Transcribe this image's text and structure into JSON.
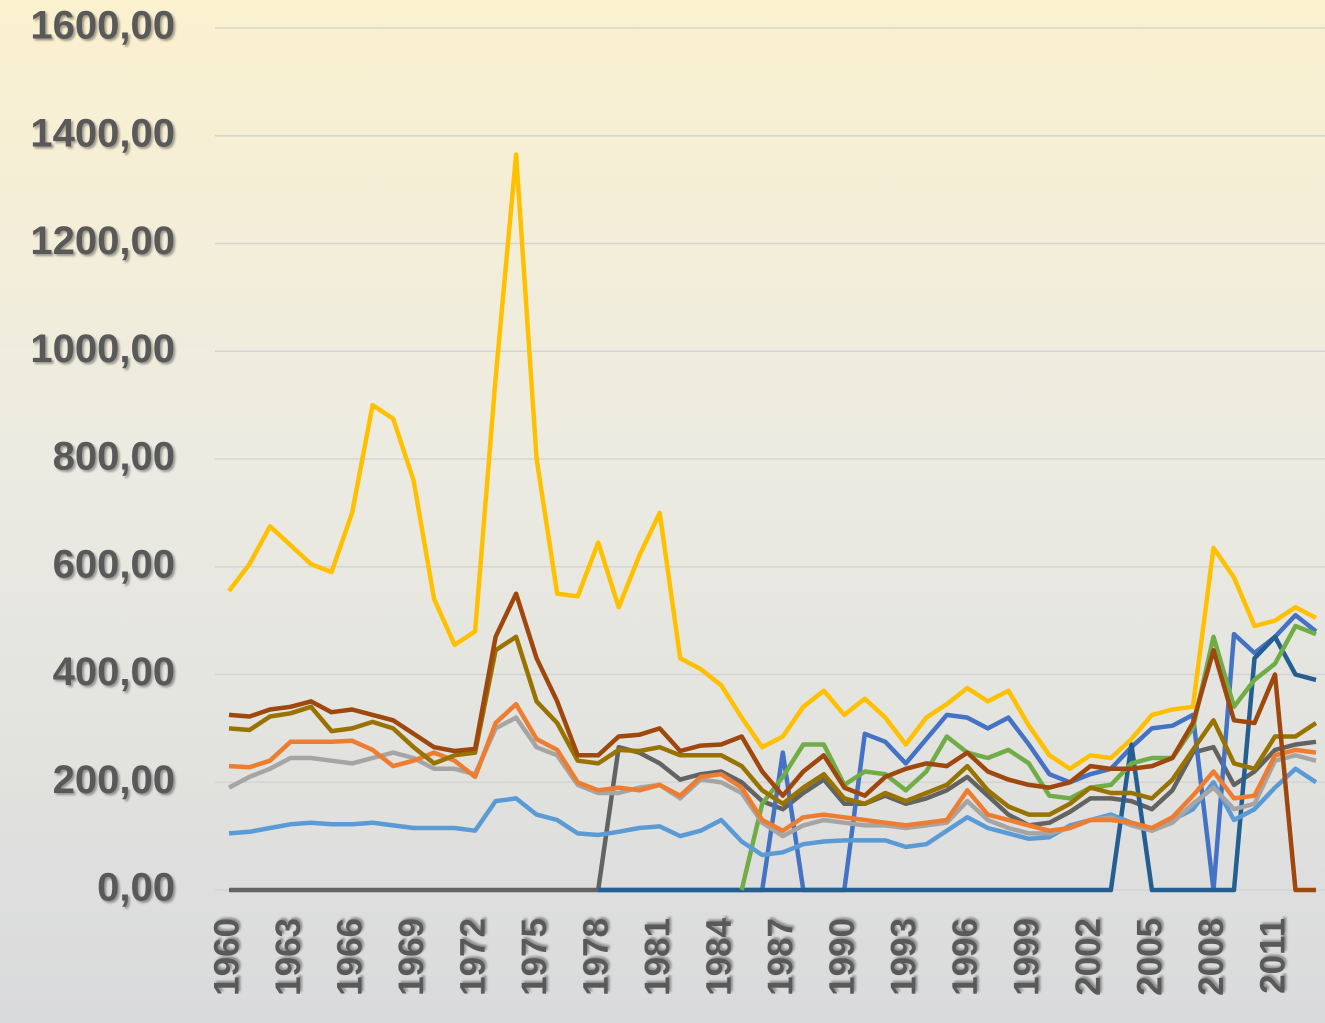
{
  "chart_data": {
    "type": "line",
    "categories": [
      "1960",
      null,
      null,
      "1963",
      null,
      null,
      "1966",
      null,
      null,
      "1969",
      null,
      null,
      "1972",
      null,
      null,
      "1975",
      null,
      null,
      "1978",
      null,
      null,
      "1981",
      null,
      null,
      "1984",
      null,
      null,
      "1987",
      null,
      null,
      "1990",
      null,
      null,
      "1993",
      null,
      null,
      "1996",
      null,
      null,
      "1999",
      null,
      null,
      "2002",
      null,
      null,
      "2005",
      null,
      null,
      "2008",
      null,
      null,
      "2011",
      null,
      null
    ],
    "ylim": [
      0,
      1600
    ],
    "yticks": [
      {
        "value": 0,
        "label": "0,00"
      },
      {
        "value": 200,
        "label": "200,00"
      },
      {
        "value": 400,
        "label": "400,00"
      },
      {
        "value": 600,
        "label": "600,00"
      },
      {
        "value": 800,
        "label": "800,00"
      },
      {
        "value": 1000,
        "label": "1000,00"
      },
      {
        "value": 1200,
        "label": "1200,00"
      },
      {
        "value": 1400,
        "label": "1400,00"
      },
      {
        "value": 1600,
        "label": "1600,00"
      }
    ],
    "grid": true,
    "series": [
      {
        "color": "#636363",
        "values": [
          0,
          0,
          0,
          0,
          0,
          0,
          0,
          0,
          0,
          0,
          0,
          0,
          0,
          0,
          0,
          0,
          0,
          0,
          0,
          265,
          255,
          235,
          205,
          215,
          220,
          200,
          165,
          150,
          180,
          205,
          160,
          160,
          175,
          160,
          170,
          185,
          210,
          175,
          140,
          120,
          125,
          145,
          170,
          170,
          165,
          150,
          185,
          255,
          265,
          195,
          220,
          260,
          270,
          275
        ]
      },
      {
        "color": "#4472c4",
        "values": [
          null,
          null,
          null,
          null,
          null,
          null,
          null,
          null,
          null,
          null,
          null,
          null,
          null,
          null,
          null,
          null,
          null,
          null,
          0,
          0,
          0,
          0,
          0,
          0,
          0,
          0,
          0,
          255,
          0,
          0,
          0,
          290,
          275,
          235,
          280,
          325,
          320,
          300,
          320,
          270,
          215,
          200,
          215,
          225,
          265,
          300,
          305,
          325,
          0,
          475,
          440,
          470,
          510,
          480
        ]
      },
      {
        "color": "#255e91",
        "values": [
          null,
          null,
          null,
          null,
          null,
          null,
          null,
          null,
          null,
          null,
          null,
          null,
          null,
          null,
          null,
          null,
          null,
          null,
          0,
          0,
          0,
          0,
          0,
          0,
          0,
          0,
          0,
          0,
          0,
          0,
          0,
          0,
          0,
          0,
          0,
          0,
          0,
          0,
          0,
          0,
          0,
          0,
          0,
          0,
          270,
          0,
          0,
          0,
          0,
          0,
          430,
          470,
          400,
          390
        ]
      },
      {
        "color": "#70ad47",
        "values": [
          null,
          null,
          null,
          null,
          null,
          null,
          null,
          null,
          null,
          null,
          null,
          null,
          null,
          null,
          null,
          null,
          null,
          null,
          null,
          null,
          null,
          null,
          null,
          null,
          null,
          0,
          160,
          210,
          270,
          270,
          195,
          220,
          215,
          185,
          220,
          285,
          255,
          245,
          260,
          235,
          175,
          170,
          190,
          195,
          235,
          245,
          245,
          300,
          470,
          340,
          390,
          420,
          490,
          475
        ]
      },
      {
        "color": "#5b9bd5",
        "values": [
          105,
          108,
          115,
          122,
          125,
          122,
          122,
          125,
          120,
          115,
          115,
          115,
          110,
          165,
          170,
          140,
          130,
          105,
          102,
          108,
          115,
          118,
          100,
          110,
          130,
          90,
          65,
          70,
          85,
          90,
          92,
          92,
          92,
          80,
          85,
          110,
          135,
          115,
          105,
          95,
          98,
          120,
          130,
          140,
          125,
          110,
          130,
          150,
          200,
          130,
          150,
          190,
          225,
          200
        ]
      },
      {
        "color": "#a5a5a5",
        "values": [
          190,
          210,
          225,
          245,
          245,
          240,
          235,
          245,
          255,
          245,
          225,
          225,
          215,
          300,
          320,
          265,
          250,
          195,
          180,
          180,
          190,
          195,
          170,
          205,
          200,
          180,
          125,
          100,
          120,
          130,
          125,
          120,
          120,
          115,
          120,
          125,
          165,
          130,
          115,
          105,
          105,
          115,
          130,
          135,
          120,
          110,
          125,
          160,
          190,
          150,
          160,
          240,
          250,
          240
        ]
      },
      {
        "color": "#ed7d31",
        "values": [
          230,
          228,
          240,
          275,
          275,
          275,
          277,
          260,
          230,
          240,
          255,
          240,
          210,
          310,
          345,
          280,
          260,
          200,
          185,
          190,
          185,
          195,
          175,
          210,
          215,
          190,
          130,
          110,
          135,
          140,
          135,
          130,
          125,
          120,
          125,
          130,
          185,
          140,
          130,
          120,
          110,
          115,
          130,
          130,
          125,
          115,
          135,
          175,
          220,
          170,
          175,
          250,
          260,
          255
        ]
      },
      {
        "color": "#997300",
        "values": [
          300,
          297,
          322,
          328,
          340,
          295,
          300,
          312,
          300,
          265,
          235,
          250,
          255,
          445,
          470,
          350,
          310,
          240,
          235,
          260,
          258,
          265,
          250,
          250,
          250,
          230,
          185,
          160,
          190,
          215,
          170,
          160,
          180,
          165,
          180,
          195,
          230,
          185,
          155,
          140,
          140,
          160,
          190,
          180,
          180,
          170,
          205,
          260,
          315,
          235,
          225,
          285,
          285,
          310
        ]
      },
      {
        "color": "#9e480e",
        "values": [
          325,
          322,
          335,
          340,
          350,
          330,
          335,
          325,
          315,
          290,
          265,
          258,
          262,
          470,
          550,
          430,
          350,
          250,
          250,
          285,
          288,
          300,
          258,
          268,
          270,
          285,
          220,
          175,
          220,
          250,
          190,
          175,
          210,
          225,
          235,
          230,
          255,
          220,
          205,
          195,
          190,
          200,
          230,
          225,
          225,
          230,
          245,
          310,
          445,
          315,
          310,
          400,
          0,
          0
        ]
      },
      {
        "color": "#ffc000",
        "values": [
          555,
          605,
          675,
          640,
          605,
          590,
          700,
          900,
          875,
          760,
          540,
          455,
          480,
          950,
          1365,
          800,
          550,
          545,
          645,
          525,
          620,
          700,
          430,
          410,
          380,
          320,
          265,
          285,
          340,
          370,
          325,
          355,
          320,
          270,
          320,
          345,
          375,
          350,
          370,
          305,
          250,
          225,
          250,
          245,
          280,
          325,
          335,
          340,
          635,
          580,
          490,
          500,
          525,
          505
        ]
      }
    ]
  }
}
